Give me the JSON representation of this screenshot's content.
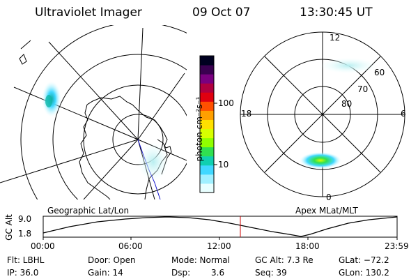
{
  "header": {
    "instrument": "Ultraviolet Imager",
    "date": "09 Oct 07",
    "time": "13:30:45 UT"
  },
  "colorbar": {
    "label": "photon cm⁻²s⁻¹",
    "ticks": [
      "100",
      "10"
    ],
    "colors": [
      "#000020",
      "#3a0050",
      "#7a0080",
      "#b00040",
      "#e00010",
      "#ff5000",
      "#ffa000",
      "#ffe000",
      "#d8ff00",
      "#90ff00",
      "#30e050",
      "#10d0b0",
      "#40d8ff",
      "#a0f0ff",
      "#e8ffff"
    ]
  },
  "left_map": {
    "caption": "Geographic Lat/Lon"
  },
  "right_map": {
    "caption": "Apex MLat/MLT",
    "mlt_labels": {
      "top": "12",
      "bottom": "0",
      "left": "18",
      "right": "6"
    },
    "lat_labels": [
      "60",
      "70",
      "80"
    ]
  },
  "orbit": {
    "ylabel": "GC Alt",
    "ytick_top": "9.0",
    "ytick_bottom": "1.8",
    "xticks": [
      "00:00",
      "06:00",
      "12:00",
      "18:00",
      "23:59"
    ],
    "marker_color": "#cc0000"
  },
  "info": {
    "filter": "Flt: LBHL",
    "door": "Door: Open",
    "mode": "Mode: Normal",
    "gc_alt": "GC Alt: 7.3 Re",
    "glat": "GLat: −72.2",
    "ip": "IP: 36.0",
    "gain": "Gain: 14",
    "dsp_label": "Dsp:",
    "dsp_value": "3.6",
    "seq": "Seq: 39",
    "glon": "GLon: 130.2"
  }
}
